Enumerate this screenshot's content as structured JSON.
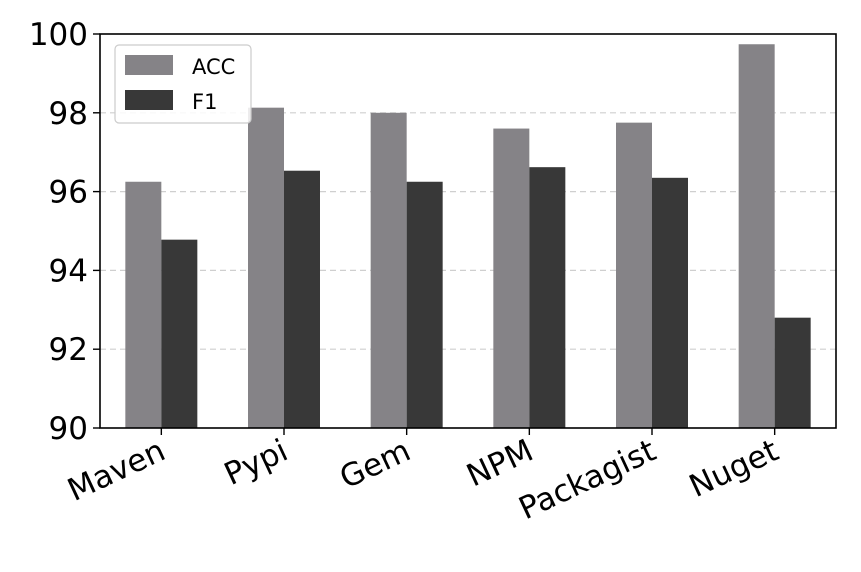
{
  "chart_data": {
    "type": "bar",
    "title": "",
    "xlabel": "",
    "ylabel": "",
    "categories": [
      "Maven",
      "Pypi",
      "Gem",
      "NPM",
      "Packagist",
      "Nuget"
    ],
    "series": [
      {
        "name": "ACC",
        "color": "#858387",
        "values": [
          96.25,
          98.13,
          98.0,
          97.6,
          97.75,
          99.74
        ]
      },
      {
        "name": "F1",
        "color": "#383838",
        "values": [
          94.78,
          96.53,
          96.25,
          96.62,
          96.35,
          92.8
        ]
      }
    ],
    "ylim": [
      90,
      100
    ],
    "yticks": [
      90,
      92,
      94,
      96,
      98,
      100
    ],
    "grid": "horizontal dashed",
    "legend_position": "top-left"
  }
}
